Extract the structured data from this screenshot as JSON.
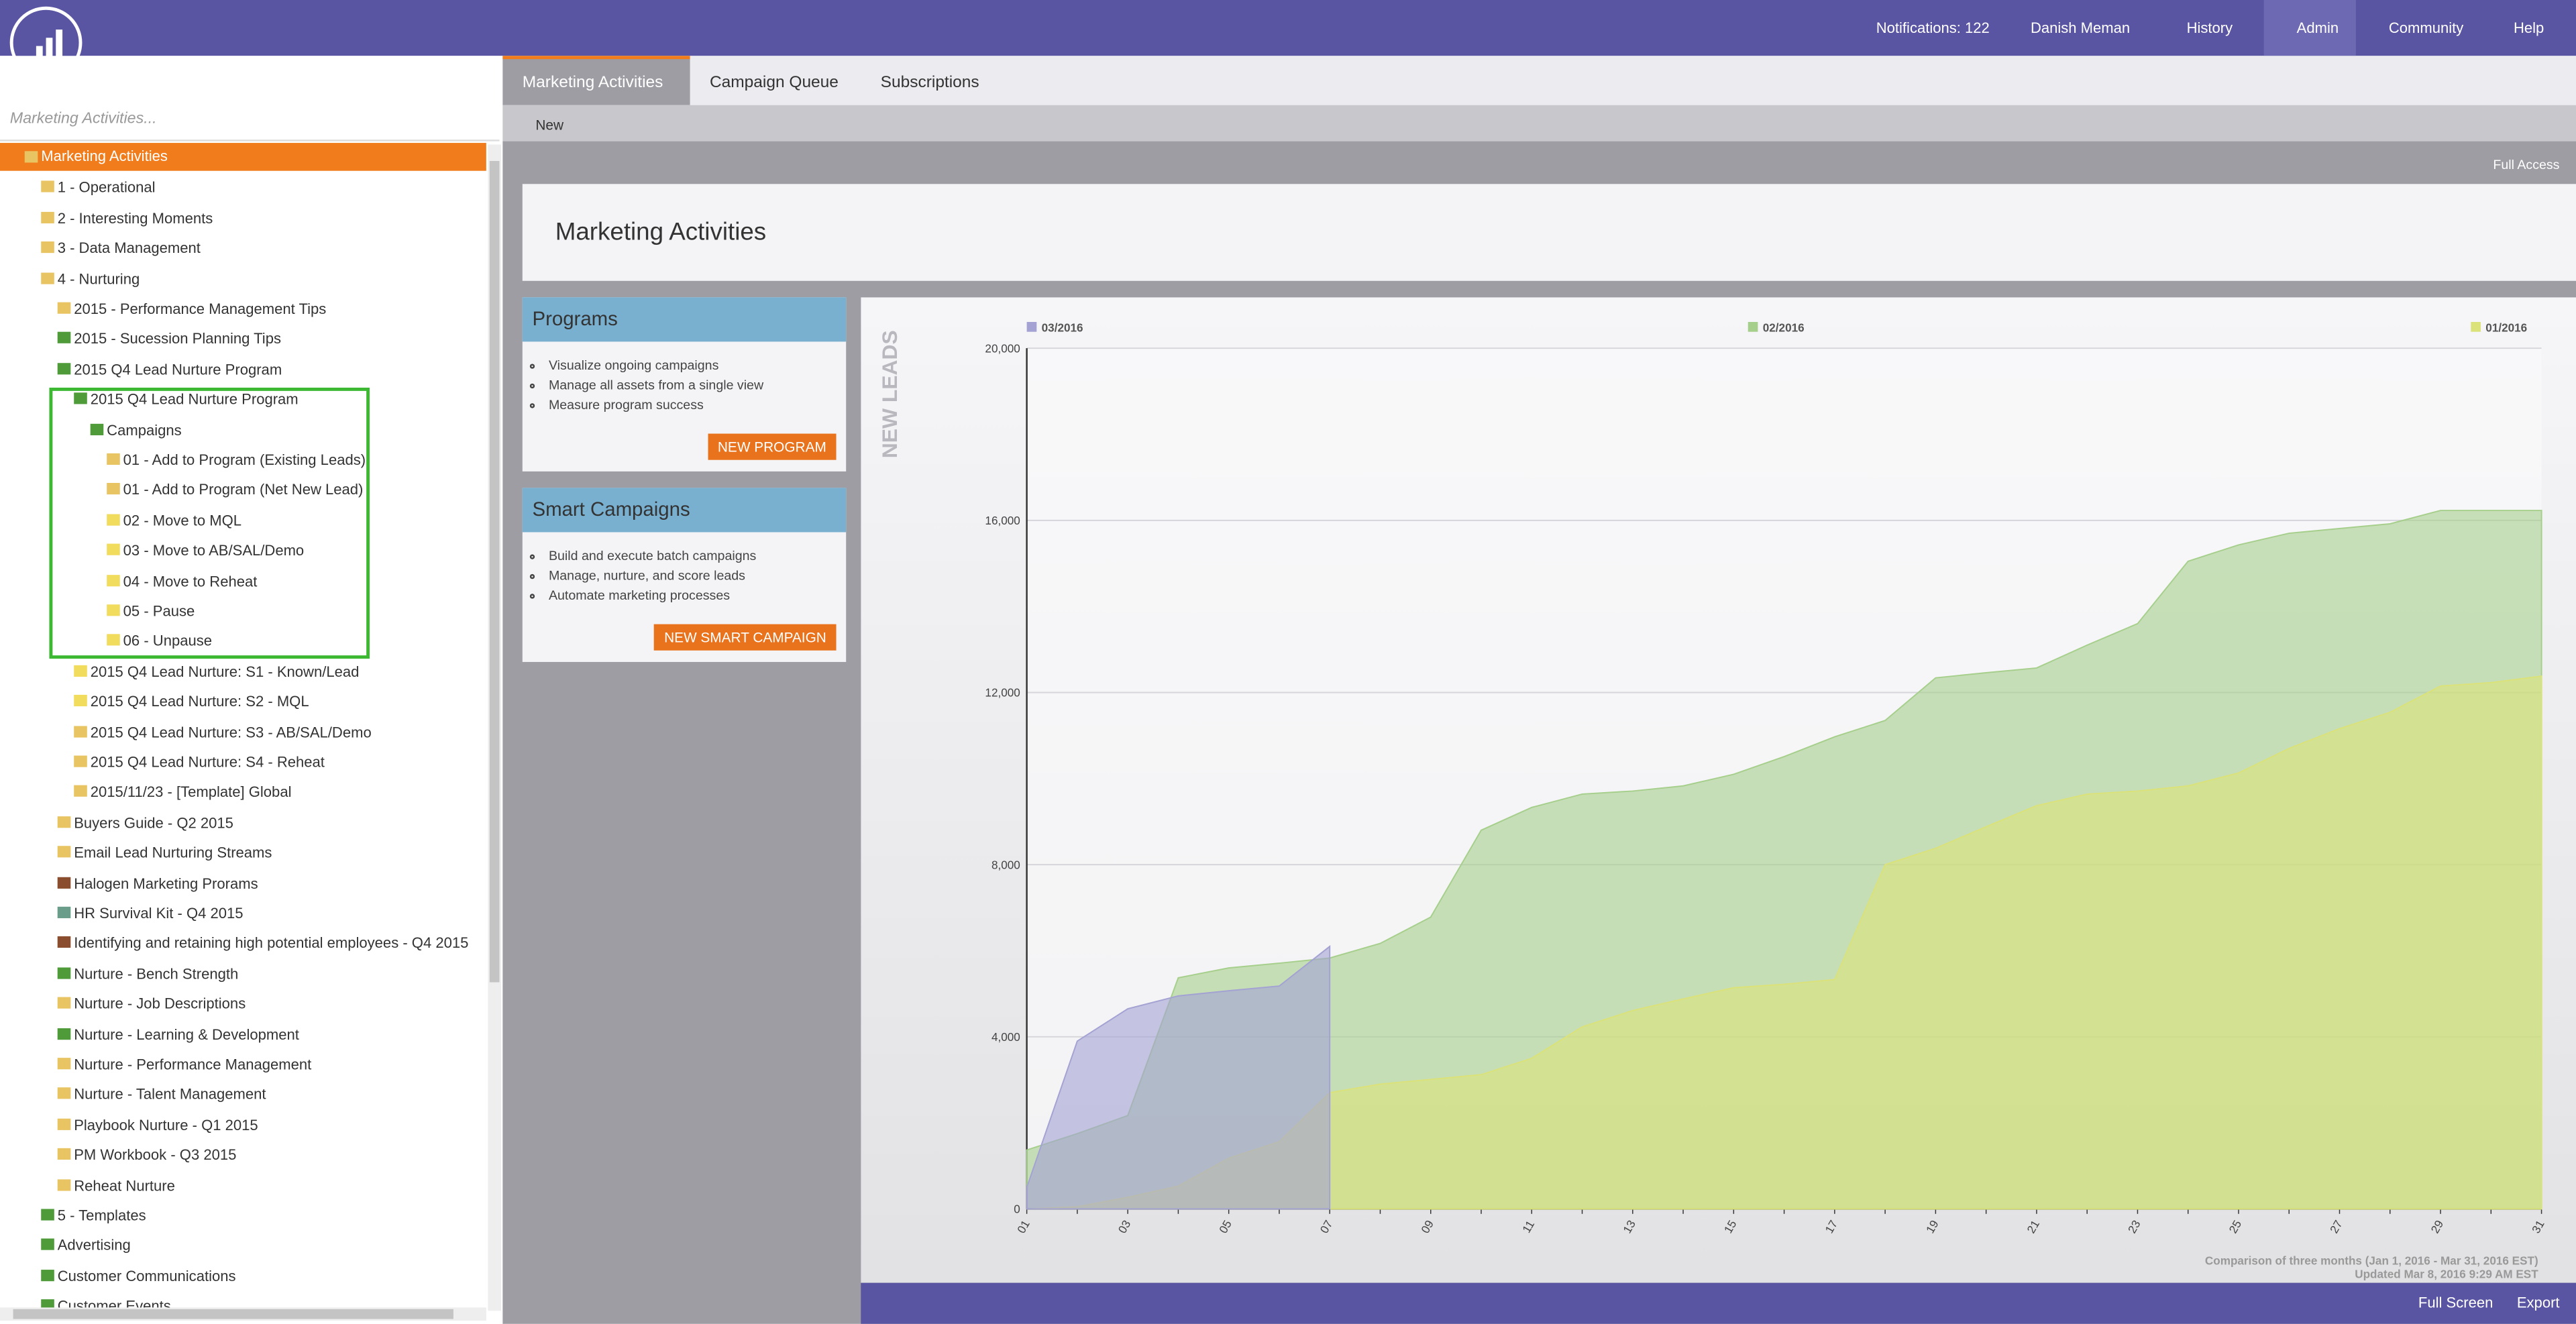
{
  "topbar": {
    "notifications": "Notifications: 122",
    "user": "Danish Meman",
    "history": "History",
    "admin": "Admin",
    "community": "Community",
    "help": "Help"
  },
  "search": {
    "placeholder": "Marketing Activities..."
  },
  "tree": {
    "items": [
      "Marketing Activities",
      "1 - Operational",
      "2 - Interesting Moments",
      "3 - Data Management",
      "4 - Nurturing",
      "2015 - Performance Management Tips",
      "2015 - Sucession Planning Tips",
      "2015 Q4 Lead Nurture Program",
      "2015 Q4 Lead Nurture Program",
      "Campaigns",
      "01 - Add to Program (Existing Leads)",
      "01 - Add to Program (Net New Lead)",
      "02 - Move to MQL",
      "03 - Move to AB/SAL/Demo",
      "04 - Move to Reheat",
      "05 - Pause",
      "06 - Unpause",
      "2015 Q4 Lead Nurture: S1 - Known/Lead",
      "2015 Q4 Lead Nurture: S2 - MQL",
      "2015 Q4 Lead Nurture: S3 - AB/SAL/Demo",
      "2015 Q4 Lead Nurture: S4 - Reheat",
      "2015/11/23 - [Template] Global",
      "Buyers Guide - Q2 2015",
      "Email Lead Nurturing Streams",
      "Halogen Marketing Prorams",
      "HR Survival Kit - Q4 2015",
      "Identifying and retaining high potential employees - Q4 2015",
      "Nurture - Bench Strength",
      "Nurture - Job Descriptions",
      "Nurture - Learning & Development",
      "Nurture - Performance Management",
      "Nurture - Talent Management",
      "Playbook Nurture - Q1 2015",
      "PM Workbook - Q3 2015",
      "Reheat Nurture",
      "5 - Templates",
      "Advertising",
      "Customer Communications",
      "Customer Events"
    ]
  },
  "tabs": [
    "Marketing Activities",
    "Campaign Queue",
    "Subscriptions"
  ],
  "toolbar": {
    "new": "New",
    "access": "Full Access"
  },
  "header": {
    "title": "Marketing Activities"
  },
  "panels": [
    {
      "title": "Programs",
      "items": [
        "Visualize ongoing campaigns",
        "Manage all assets from a single view",
        "Measure program success"
      ],
      "button": "NEW PROGRAM"
    },
    {
      "title": "Smart Campaigns",
      "items": [
        "Build and execute batch campaigns",
        "Manage, nurture, and score leads",
        "Automate marketing processes"
      ],
      "button": "NEW SMART CAMPAIGN"
    }
  ],
  "chart_data": {
    "type": "area",
    "y_label": "NEW LEADS",
    "categories": [
      "01",
      null,
      "03",
      null,
      "05",
      null,
      "07",
      null,
      "09",
      null,
      "11",
      null,
      "13",
      null,
      "15",
      null,
      "17",
      null,
      "19",
      null,
      "21",
      null,
      "23",
      null,
      "25",
      null,
      "27",
      null,
      "29",
      null,
      "31"
    ],
    "series": [
      {
        "name": "03/2016",
        "color": "#a3a2d3",
        "values": [
          500,
          3900,
          4650,
          4950,
          5070,
          5180,
          6100,
          null,
          null,
          null,
          null,
          null,
          null,
          null,
          null,
          null,
          null,
          null,
          null,
          null,
          null,
          null,
          null,
          null,
          null,
          null,
          null,
          null,
          null,
          null,
          null
        ]
      },
      {
        "name": "02/2016",
        "color": "#a6cf8c",
        "values": [
          1370,
          1750,
          2170,
          5370,
          5600,
          5710,
          5830,
          6170,
          6780,
          8800,
          9330,
          9640,
          9710,
          9830,
          10100,
          10510,
          10970,
          11350,
          12340,
          12460,
          12570,
          13100,
          13600,
          15050,
          15430,
          15700,
          15810,
          15920,
          16230,
          16230,
          16230
        ]
      },
      {
        "name": "01/2016",
        "color": "#dbe27a",
        "values": [
          0,
          50,
          270,
          530,
          1180,
          1560,
          2700,
          2900,
          3010,
          3120,
          3500,
          4230,
          4610,
          4880,
          5140,
          5220,
          5330,
          8000,
          8380,
          8880,
          9370,
          9640,
          9710,
          9830,
          10130,
          10700,
          11160,
          11540,
          12150,
          12230,
          12380
        ]
      }
    ],
    "ylim": [
      0,
      20000
    ],
    "yticks": [
      0,
      {
        "value": 4000,
        "label": "4,000"
      },
      {
        "value": 8000,
        "label": "8,000"
      },
      {
        "value": 12000,
        "label": "12,000"
      },
      {
        "value": 16000,
        "label": "16,000"
      },
      {
        "value": 20000,
        "label": "20,000"
      }
    ],
    "grid": true,
    "footnotes": [
      "Comparison of three months (Jan 1, 2016 - Mar 31, 2016 EST)",
      "Updated Mar 8, 2016 9:29 AM EST"
    ]
  },
  "footer": {
    "fullscreen": "Full Screen",
    "export": "Export"
  }
}
